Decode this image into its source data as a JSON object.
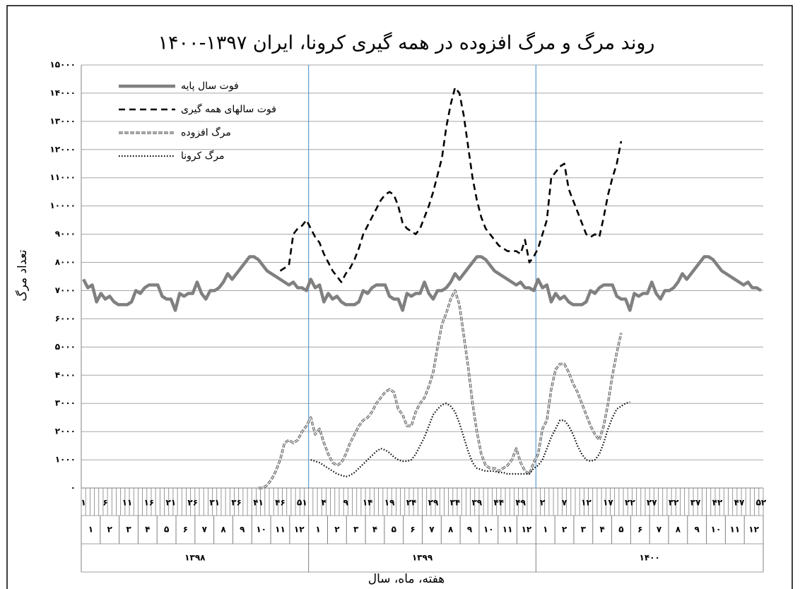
{
  "chart_data": {
    "type": "line",
    "title": "روند مرگ و مرگ افزوده در همه گیری کرونا، ایران ۱۳۹۷-۱۴۰۰",
    "ylabel": "تعداد مرگ",
    "xlabel": "هفته، ماه، سال",
    "categories": [
      "۱",
      null,
      null,
      null,
      null,
      "۶",
      null,
      null,
      null,
      null,
      "۱۱",
      null,
      null,
      null,
      null,
      "۱۶",
      null,
      null,
      null,
      null,
      "۲۱",
      null,
      null,
      null,
      null,
      "۲۶",
      null,
      null,
      null,
      null,
      "۳۱",
      null,
      null,
      null,
      null,
      "۳۶",
      null,
      null,
      null,
      null,
      "۴۱",
      null,
      null,
      null,
      null,
      "۴۶",
      null,
      null,
      null,
      null,
      "۵۱",
      null,
      null,
      null,
      null,
      "۴",
      null,
      null,
      null,
      null,
      "۹",
      null,
      null,
      null,
      null,
      "۱۴",
      null,
      null,
      null,
      null,
      "۱۹",
      null,
      null,
      null,
      null,
      "۲۴",
      null,
      null,
      null,
      null,
      "۲۹",
      null,
      null,
      null,
      null,
      "۳۴",
      null,
      null,
      null,
      null,
      "۳۹",
      null,
      null,
      null,
      null,
      "۴۴",
      null,
      null,
      null,
      null,
      "۴۹",
      null,
      null,
      null,
      null,
      "۲",
      null,
      null,
      null,
      null,
      "۷",
      null,
      null,
      null,
      null,
      "۱۲",
      null,
      null,
      null,
      null,
      "۱۷",
      null,
      null,
      null,
      null,
      "۲۲",
      null,
      null,
      null,
      null,
      "۲۷",
      null,
      null,
      null,
      null,
      "۳۲",
      null,
      null,
      null,
      null,
      "۳۷",
      null,
      null,
      null,
      null,
      "۴۲",
      null,
      null,
      null,
      null,
      "۴۷",
      null,
      null,
      null,
      null,
      "۵۲"
    ],
    "months": [
      "۱",
      "۲",
      "۳",
      "۴",
      "۵",
      "۶",
      "۷",
      "۸",
      "۹",
      "۱۰",
      "۱۱",
      "۱۲",
      "۱",
      "۲",
      "۳",
      "۴",
      "۵",
      "۶",
      "۷",
      "۸",
      "۹",
      "۱۰",
      "۱۱",
      "۱۲",
      "۱",
      "۲",
      "۳",
      "۴",
      "۵",
      "۶",
      "۷",
      "۸",
      "۹",
      "۱۰",
      "۱۱",
      "۱۲"
    ],
    "years": [
      "۱۳۹۸",
      "۱۳۹۹",
      "۱۴۰۰"
    ],
    "ylim": [
      0,
      15000
    ],
    "yticks": [
      {
        "value": 0,
        "label": "۰"
      },
      {
        "value": 1000,
        "label": "۱۰۰۰"
      },
      {
        "value": 2000,
        "label": "۲۰۰۰"
      },
      {
        "value": 3000,
        "label": "۳۰۰۰"
      },
      {
        "value": 4000,
        "label": "۴۰۰۰"
      },
      {
        "value": 5000,
        "label": "۵۰۰۰"
      },
      {
        "value": 6000,
        "label": "۶۰۰۰"
      },
      {
        "value": 7000,
        "label": "۷۰۰۰"
      },
      {
        "value": 8000,
        "label": "۸۰۰۰"
      },
      {
        "value": 9000,
        "label": "۹۰۰۰"
      },
      {
        "value": 10000,
        "label": "۱۰۰۰۰"
      },
      {
        "value": 11000,
        "label": "۱۱۰۰۰"
      },
      {
        "value": 12000,
        "label": "۱۲۰۰۰"
      },
      {
        "value": 13000,
        "label": "۱۳۰۰۰"
      },
      {
        "value": 14000,
        "label": "۱۴۰۰۰"
      },
      {
        "value": 15000,
        "label": "۱۵۰۰۰"
      }
    ],
    "grid": true,
    "legend": "upper left",
    "series": [
      {
        "name": "فوت سال پایه",
        "color": "#808080",
        "dash": "solid",
        "values": [
          7400,
          7100,
          7200,
          6600,
          6900,
          6700,
          6800,
          6600,
          6500,
          6500,
          6500,
          6600,
          7000,
          6900,
          7100,
          7200,
          7200,
          7200,
          6800,
          6700,
          6700,
          6300,
          6900,
          6800,
          6900,
          6900,
          7300,
          6900,
          6700,
          7000,
          7000,
          7100,
          7300,
          7600,
          7400,
          7600,
          7800,
          8000,
          8200,
          8200,
          8100,
          7900,
          7700,
          7600,
          7500,
          7400,
          7300,
          7200,
          7300,
          7100,
          7100,
          7000,
          7400,
          7100,
          7200,
          6600,
          6900,
          6700,
          6800,
          6600,
          6500,
          6500,
          6500,
          6600,
          7000,
          6900,
          7100,
          7200,
          7200,
          7200,
          6800,
          6700,
          6700,
          6300,
          6900,
          6800,
          6900,
          6900,
          7300,
          6900,
          6700,
          7000,
          7000,
          7100,
          7300,
          7600,
          7400,
          7600,
          7800,
          8000,
          8200,
          8200,
          8100,
          7900,
          7700,
          7600,
          7500,
          7400,
          7300,
          7200,
          7300,
          7100,
          7100,
          7000,
          7400,
          7100,
          7200,
          6600,
          6900,
          6700,
          6800,
          6600,
          6500,
          6500,
          6500,
          6600,
          7000,
          6900,
          7100,
          7200,
          7200,
          7200,
          6800,
          6700,
          6700,
          6300,
          6900,
          6800,
          6900,
          6900,
          7300,
          6900,
          6700,
          7000,
          7000,
          7100,
          7300,
          7600,
          7400,
          7600,
          7800,
          8000,
          8200,
          8200,
          8100,
          7900,
          7700,
          7600,
          7500,
          7400,
          7300,
          7200,
          7300,
          7100,
          7100,
          7000
        ]
      },
      {
        "name": "فوت سالهای همه گیری",
        "color": "#000000",
        "dash": "dashed",
        "values": [
          null,
          null,
          null,
          null,
          null,
          null,
          null,
          null,
          null,
          null,
          null,
          null,
          null,
          null,
          null,
          null,
          null,
          null,
          null,
          null,
          null,
          null,
          null,
          null,
          null,
          null,
          null,
          null,
          null,
          null,
          null,
          null,
          null,
          null,
          null,
          null,
          null,
          null,
          null,
          null,
          null,
          null,
          null,
          null,
          null,
          7700,
          7800,
          7900,
          9000,
          9200,
          9300,
          9500,
          9200,
          8900,
          8700,
          8300,
          8000,
          7700,
          7500,
          7300,
          7600,
          7800,
          8100,
          8500,
          9000,
          9300,
          9600,
          9900,
          10200,
          10400,
          10500,
          10400,
          10000,
          9400,
          9200,
          9100,
          9000,
          9200,
          9600,
          10000,
          10500,
          11100,
          11700,
          12800,
          13600,
          14200,
          14000,
          13200,
          12100,
          11000,
          10200,
          9600,
          9200,
          9000,
          8800,
          8600,
          8500,
          8400,
          8400,
          8400,
          8300,
          8800,
          8000,
          8200,
          8500,
          9000,
          9500,
          11000,
          11200,
          11400,
          11500,
          10600,
          10200,
          9800,
          9400,
          9000,
          8900,
          9000,
          8900,
          9600,
          10400,
          11000,
          11500,
          12300,
          null,
          null,
          null,
          null,
          null,
          null,
          null,
          null,
          null,
          null,
          null,
          null,
          null,
          null,
          null,
          null,
          null,
          null,
          null,
          null,
          null,
          null,
          null,
          null,
          null,
          null,
          null,
          null,
          null,
          null,
          null,
          null
        ]
      },
      {
        "name": "مرگ افزوده",
        "color": "#555555",
        "dash": "double",
        "values": [
          null,
          null,
          null,
          null,
          null,
          null,
          null,
          null,
          null,
          null,
          null,
          null,
          null,
          null,
          null,
          null,
          null,
          null,
          null,
          null,
          null,
          null,
          null,
          null,
          null,
          null,
          null,
          null,
          null,
          null,
          null,
          null,
          null,
          null,
          null,
          null,
          null,
          null,
          null,
          null,
          0,
          0,
          100,
          300,
          600,
          1000,
          1600,
          1700,
          1600,
          1700,
          2000,
          2200,
          2500,
          1900,
          2100,
          1600,
          1200,
          900,
          800,
          900,
          1200,
          1600,
          1900,
          2200,
          2400,
          2500,
          2700,
          3000,
          3200,
          3400,
          3500,
          3400,
          2800,
          2600,
          2200,
          2200,
          2700,
          3000,
          3200,
          3600,
          4100,
          5000,
          5800,
          6200,
          6700,
          7000,
          6500,
          5400,
          4300,
          3000,
          2000,
          1200,
          800,
          700,
          700,
          600,
          700,
          800,
          1000,
          1400,
          900,
          600,
          500,
          900,
          1200,
          2100,
          2400,
          3500,
          4200,
          4400,
          4400,
          4100,
          3700,
          3400,
          3000,
          2600,
          2200,
          1900,
          1700,
          2200,
          3000,
          4000,
          4800,
          5500,
          null,
          null,
          null,
          null,
          null,
          null,
          null,
          null,
          null,
          null,
          null,
          null,
          null,
          null,
          null,
          null,
          null,
          null,
          null,
          null,
          null,
          null,
          null,
          null,
          null,
          null,
          null,
          null,
          null,
          null,
          null,
          null
        ]
      },
      {
        "name": "مرگ کرونا",
        "color": "#000000",
        "dash": "dotted",
        "values": [
          null,
          null,
          null,
          null,
          null,
          null,
          null,
          null,
          null,
          null,
          null,
          null,
          null,
          null,
          null,
          null,
          null,
          null,
          null,
          null,
          null,
          null,
          null,
          null,
          null,
          null,
          null,
          null,
          null,
          null,
          null,
          null,
          null,
          null,
          null,
          null,
          null,
          null,
          null,
          null,
          null,
          null,
          null,
          null,
          null,
          null,
          null,
          null,
          null,
          null,
          null,
          null,
          1000,
          950,
          900,
          800,
          700,
          600,
          500,
          450,
          400,
          450,
          550,
          700,
          850,
          1000,
          1150,
          1300,
          1400,
          1350,
          1250,
          1100,
          1000,
          950,
          950,
          1000,
          1200,
          1500,
          1800,
          2200,
          2600,
          2800,
          2950,
          3000,
          2900,
          2700,
          2300,
          1800,
          1300,
          900,
          700,
          650,
          600,
          600,
          600,
          550,
          550,
          500,
          500,
          500,
          500,
          500,
          500,
          700,
          800,
          1000,
          1400,
          1800,
          2100,
          2400,
          2400,
          2200,
          1900,
          1500,
          1200,
          1000,
          950,
          1000,
          1200,
          1600,
          2100,
          2500,
          2800,
          2900,
          3000,
          3050,
          null,
          null,
          null,
          null,
          null,
          null,
          null,
          null,
          null,
          null,
          null,
          null,
          null,
          null,
          null,
          null,
          null,
          null,
          null,
          null,
          null,
          null,
          null,
          null,
          null,
          null,
          null,
          null,
          null,
          null
        ]
      }
    ]
  }
}
